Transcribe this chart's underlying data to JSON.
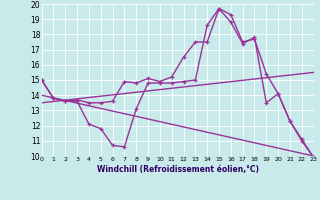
{
  "xlabel": "Windchill (Refroidissement éolien,°C)",
  "xlim": [
    0,
    23
  ],
  "ylim": [
    10,
    20
  ],
  "xticks": [
    0,
    1,
    2,
    3,
    4,
    5,
    6,
    7,
    8,
    9,
    10,
    11,
    12,
    13,
    14,
    15,
    16,
    17,
    18,
    19,
    20,
    21,
    22,
    23
  ],
  "yticks": [
    10,
    11,
    12,
    13,
    14,
    15,
    16,
    17,
    18,
    19,
    20
  ],
  "bg_color": "#c8eaea",
  "line_color": "#993399",
  "lines": [
    {
      "x": [
        0,
        1,
        2,
        3,
        4,
        5,
        6,
        7,
        8,
        9,
        10,
        11,
        12,
        13,
        14,
        15,
        16,
        17,
        18,
        19,
        20,
        21,
        22,
        23
      ],
      "y": [
        15.0,
        13.8,
        13.6,
        13.7,
        13.5,
        13.5,
        13.6,
        14.9,
        14.8,
        15.1,
        14.9,
        15.2,
        16.5,
        17.5,
        17.5,
        19.7,
        19.3,
        17.5,
        17.7,
        15.4,
        14.1,
        12.3,
        11.1,
        9.9
      ],
      "marker": true,
      "lw": 1.0
    },
    {
      "x": [
        0,
        1,
        2,
        3,
        4,
        5,
        6,
        7,
        8,
        9,
        10,
        11,
        12,
        13,
        14,
        15,
        16,
        17,
        18,
        19,
        20,
        21,
        22,
        23
      ],
      "y": [
        15.0,
        13.8,
        13.6,
        13.6,
        12.1,
        11.8,
        10.7,
        10.6,
        13.1,
        14.8,
        14.8,
        14.8,
        14.9,
        15.0,
        18.6,
        19.7,
        18.8,
        17.4,
        17.8,
        13.5,
        14.1,
        12.3,
        11.0,
        9.9
      ],
      "marker": true,
      "lw": 1.0
    },
    {
      "x": [
        0,
        23
      ],
      "y": [
        13.5,
        15.5
      ],
      "marker": false,
      "lw": 1.0
    },
    {
      "x": [
        0,
        23
      ],
      "y": [
        14.0,
        10.0
      ],
      "marker": false,
      "lw": 1.0
    }
  ]
}
